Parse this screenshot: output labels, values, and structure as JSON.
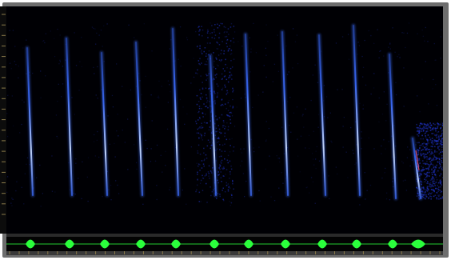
{
  "app": {
    "view": "spectrogram"
  },
  "colors": {
    "background": "#000004",
    "call": "#3b6cff",
    "call_core": "#c9dcff",
    "noise": "#1d2fb8",
    "waveform": "#2bff3c",
    "frame": "#6e6e6e",
    "tick": "#8a7a4a"
  },
  "spectrogram": {
    "call_count": 12,
    "frequency_axis_tick_count": 20,
    "time_axis_tick_count": 46
  },
  "waveform": {
    "burst_count": 12
  }
}
